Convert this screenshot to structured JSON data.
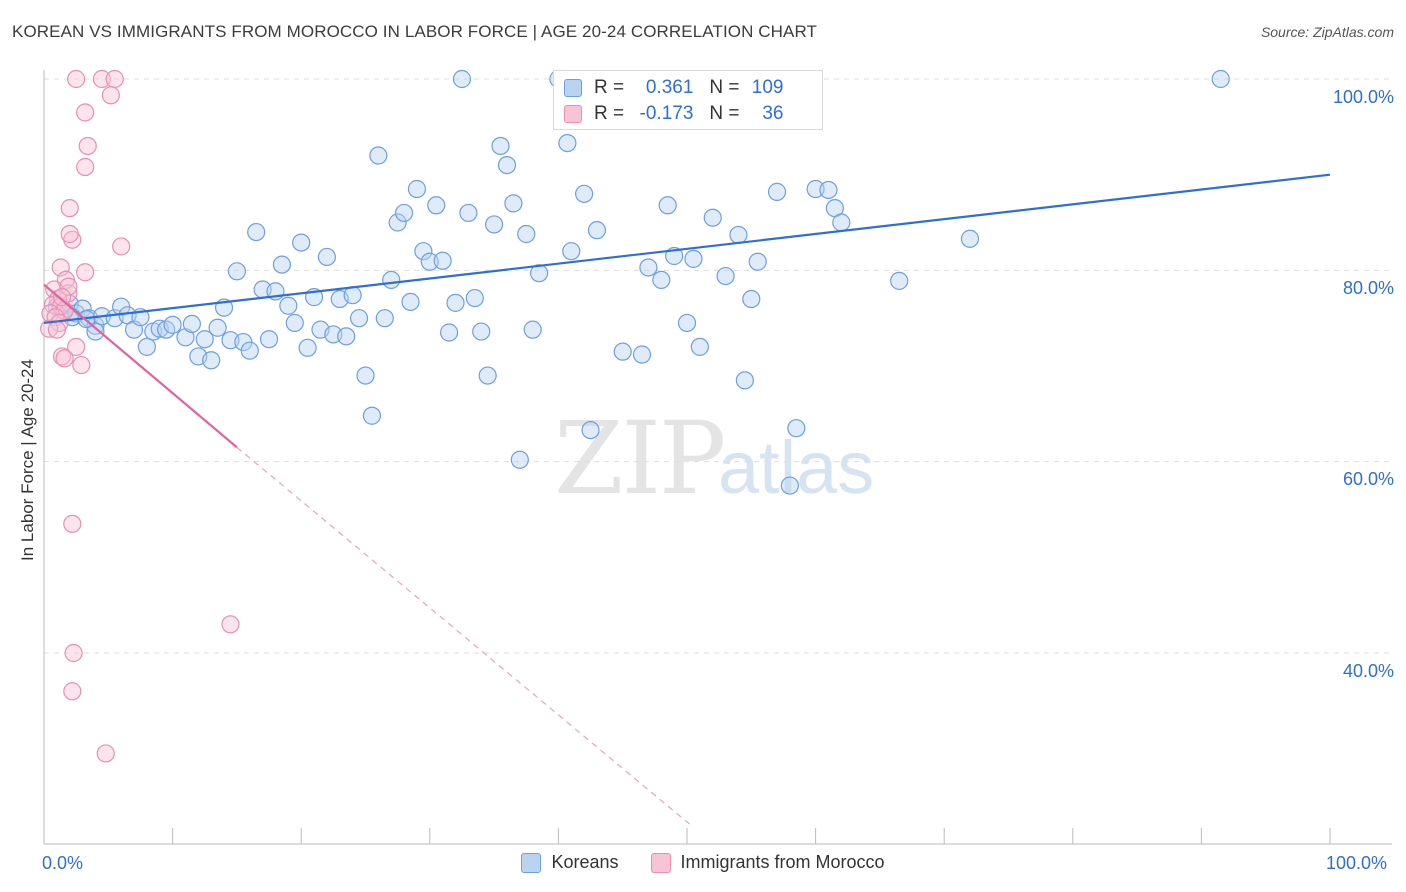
{
  "title": "KOREAN VS IMMIGRANTS FROM MOROCCO IN LABOR FORCE | AGE 20-24 CORRELATION CHART",
  "source": "Source: ZipAtlas.com",
  "watermark": {
    "zip": "ZIP",
    "atlas": "atlas"
  },
  "colors": {
    "blue": "#2f6fd1",
    "blue_fill": "#b9d3f1",
    "pink": "#e0639a",
    "pink_fill": "#f7c3d5",
    "grid": "#dddddd"
  },
  "legend": {
    "rows": [
      {
        "r_label": "R =",
        "r_value": "0.361",
        "n_label": "N =",
        "n_value": "109"
      },
      {
        "r_label": "R =",
        "r_value": "-0.173",
        "n_label": "N =",
        "n_value": "36"
      }
    ]
  },
  "bottom_legend": [
    "Koreans",
    "Immigrants from Morocco"
  ],
  "chart_data": {
    "type": "scatter",
    "title": "KOREAN VS IMMIGRANTS FROM MOROCCO IN LABOR FORCE | AGE 20-24 CORRELATION CHART",
    "xlabel": "",
    "ylabel": "In Labor Force | Age 20-24",
    "xlim": [
      0,
      100
    ],
    "ylim": [
      22,
      103
    ],
    "x_tick_labels": [
      "0.0%",
      "100.0%"
    ],
    "y_tick_labels": [
      "100.0%",
      "80.0%",
      "60.0%",
      "40.0%"
    ],
    "y_ticks": [
      100,
      80,
      60,
      40
    ],
    "series": [
      {
        "name": "Koreans",
        "r": 0.361,
        "n": 109,
        "trend": {
          "x": [
            0,
            100
          ],
          "y": [
            74.5,
            90.0
          ]
        },
        "points": [
          [
            1.0,
            76.2
          ],
          [
            1.5,
            75.8
          ],
          [
            2.0,
            76.5
          ],
          [
            2.5,
            75.5
          ],
          [
            3.0,
            76.0
          ],
          [
            3.5,
            75.0
          ],
          [
            4.0,
            74.2
          ],
          [
            4.5,
            75.2
          ],
          [
            4.0,
            73.6
          ],
          [
            5.5,
            75.0
          ],
          [
            6.0,
            76.2
          ],
          [
            6.5,
            75.3
          ],
          [
            7.0,
            73.8
          ],
          [
            7.5,
            75.1
          ],
          [
            8.0,
            72.0
          ],
          [
            8.5,
            73.6
          ],
          [
            9.0,
            73.9
          ],
          [
            9.5,
            73.8
          ],
          [
            10.0,
            74.3
          ],
          [
            11.0,
            73.0
          ],
          [
            11.5,
            74.4
          ],
          [
            12.0,
            71.0
          ],
          [
            12.5,
            72.8
          ],
          [
            13.0,
            70.6
          ],
          [
            13.5,
            74.0
          ],
          [
            14.0,
            76.1
          ],
          [
            14.5,
            72.7
          ],
          [
            15.0,
            79.9
          ],
          [
            15.5,
            72.5
          ],
          [
            16.0,
            71.6
          ],
          [
            16.5,
            84.0
          ],
          [
            17.0,
            78.0
          ],
          [
            17.5,
            72.8
          ],
          [
            18.0,
            77.8
          ],
          [
            18.5,
            80.6
          ],
          [
            19.0,
            76.3
          ],
          [
            19.5,
            74.5
          ],
          [
            20.0,
            82.9
          ],
          [
            20.5,
            71.9
          ],
          [
            21.0,
            77.2
          ],
          [
            21.5,
            73.8
          ],
          [
            22.0,
            81.4
          ],
          [
            22.5,
            73.3
          ],
          [
            23.0,
            77.0
          ],
          [
            23.5,
            73.1
          ],
          [
            24.0,
            77.4
          ],
          [
            24.5,
            75.0
          ],
          [
            25.0,
            69.0
          ],
          [
            25.5,
            64.8
          ],
          [
            26.0,
            92.0
          ],
          [
            26.5,
            75.0
          ],
          [
            27.0,
            79.0
          ],
          [
            27.5,
            85.0
          ],
          [
            28.0,
            86.0
          ],
          [
            28.5,
            76.7
          ],
          [
            29.0,
            88.5
          ],
          [
            29.5,
            82.0
          ],
          [
            30.0,
            80.9
          ],
          [
            30.5,
            86.8
          ],
          [
            31.0,
            81.0
          ],
          [
            31.5,
            73.5
          ],
          [
            32.0,
            76.6
          ],
          [
            32.5,
            100.0
          ],
          [
            33.0,
            86.0
          ],
          [
            33.5,
            77.1
          ],
          [
            34.0,
            73.6
          ],
          [
            34.5,
            69.0
          ],
          [
            35.0,
            84.8
          ],
          [
            35.5,
            93.0
          ],
          [
            36.0,
            91.0
          ],
          [
            36.5,
            87.0
          ],
          [
            37.0,
            60.2
          ],
          [
            37.5,
            83.8
          ],
          [
            38.0,
            73.8
          ],
          [
            38.5,
            79.7
          ],
          [
            40.0,
            100.0
          ],
          [
            40.5,
            100.0
          ],
          [
            40.7,
            93.3
          ],
          [
            41.0,
            82.0
          ],
          [
            42.0,
            88.0
          ],
          [
            42.5,
            63.3
          ],
          [
            43.0,
            84.2
          ],
          [
            45.0,
            71.5
          ],
          [
            46.5,
            71.2
          ],
          [
            47.0,
            80.3
          ],
          [
            48.0,
            79.0
          ],
          [
            48.5,
            86.8
          ],
          [
            49.0,
            81.5
          ],
          [
            50.0,
            74.5
          ],
          [
            50.5,
            81.2
          ],
          [
            51.0,
            72.0
          ],
          [
            52.0,
            85.5
          ],
          [
            53.0,
            79.4
          ],
          [
            54.0,
            83.7
          ],
          [
            54.5,
            68.5
          ],
          [
            55.0,
            77.0
          ],
          [
            55.5,
            80.9
          ],
          [
            57.0,
            88.2
          ],
          [
            58.0,
            57.5
          ],
          [
            58.5,
            63.5
          ],
          [
            60.0,
            88.5
          ],
          [
            61.0,
            88.4
          ],
          [
            61.5,
            86.5
          ],
          [
            62.0,
            85.0
          ],
          [
            66.5,
            78.9
          ],
          [
            72.0,
            83.3
          ],
          [
            91.5,
            100.0
          ],
          [
            2.2,
            75.1
          ],
          [
            3.3,
            74.9
          ]
        ]
      },
      {
        "name": "Immigrants from Morocco",
        "r": -0.173,
        "n": 36,
        "trend": {
          "x": [
            0,
            15
          ],
          "y": [
            78.5,
            61.5
          ]
        },
        "trend_dashed": {
          "x": [
            15,
            50.3
          ],
          "y": [
            61.5,
            22
          ]
        },
        "points": [
          [
            2.5,
            100.0
          ],
          [
            4.5,
            100.0
          ],
          [
            5.5,
            100.0
          ],
          [
            5.2,
            98.3
          ],
          [
            3.2,
            96.5
          ],
          [
            3.4,
            93.0
          ],
          [
            3.2,
            90.8
          ],
          [
            2.0,
            86.5
          ],
          [
            2.2,
            83.2
          ],
          [
            2.0,
            83.8
          ],
          [
            6.0,
            82.5
          ],
          [
            1.3,
            80.3
          ],
          [
            3.2,
            79.8
          ],
          [
            1.7,
            79.0
          ],
          [
            0.8,
            78.0
          ],
          [
            1.9,
            77.6
          ],
          [
            1.1,
            77.0
          ],
          [
            0.7,
            76.4
          ],
          [
            1.3,
            76.2
          ],
          [
            1.6,
            75.8
          ],
          [
            0.5,
            75.5
          ],
          [
            0.9,
            75.1
          ],
          [
            1.2,
            74.5
          ],
          [
            0.4,
            73.9
          ],
          [
            1.0,
            73.8
          ],
          [
            2.5,
            72.0
          ],
          [
            1.4,
            71.0
          ],
          [
            1.6,
            70.8
          ],
          [
            2.9,
            70.1
          ],
          [
            2.2,
            53.5
          ],
          [
            14.5,
            43.0
          ],
          [
            2.3,
            40.0
          ],
          [
            2.2,
            36.0
          ],
          [
            4.8,
            29.5
          ],
          [
            1.9,
            78.3
          ],
          [
            1.4,
            77.2
          ]
        ]
      }
    ]
  }
}
